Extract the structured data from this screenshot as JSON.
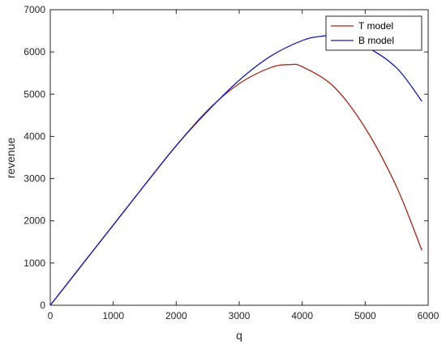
{
  "chart_data": {
    "type": "line",
    "title": "",
    "xlabel": "q",
    "ylabel": "revenue",
    "xlim": [
      0,
      6000
    ],
    "ylim": [
      0,
      7000
    ],
    "xticks": [
      0,
      1000,
      2000,
      3000,
      4000,
      5000,
      6000
    ],
    "yticks": [
      0,
      1000,
      2000,
      3000,
      4000,
      5000,
      6000,
      7000
    ],
    "grid": false,
    "legend_position": "top-right",
    "x": [
      0,
      500,
      1000,
      1500,
      2000,
      2500,
      3000,
      3500,
      3800,
      4000,
      4500,
      5000,
      5500,
      5900
    ],
    "series": [
      {
        "name": "T model",
        "color": "#a0291a",
        "values": [
          0,
          950,
          1900,
          2850,
          3780,
          4620,
          5250,
          5630,
          5700,
          5650,
          5180,
          4200,
          2800,
          1300
        ]
      },
      {
        "name": "B model",
        "color": "#1a1aa6",
        "x": [
          0,
          500,
          1000,
          1500,
          2000,
          2500,
          3000,
          3500,
          4000,
          4300,
          4500,
          5000,
          5500,
          5900
        ],
        "values": [
          0,
          950,
          1900,
          2850,
          3780,
          4600,
          5330,
          5900,
          6270,
          6370,
          6360,
          6130,
          5620,
          4830
        ]
      }
    ]
  }
}
